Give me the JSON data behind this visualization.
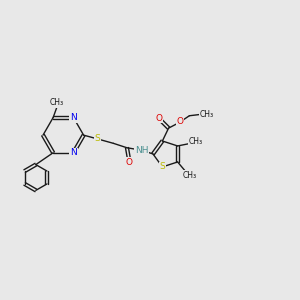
{
  "bg_color": "#e8e8e8",
  "bond_color": "#1a1a1a",
  "N_color": "#0000ee",
  "S_color": "#bbbb00",
  "O_color": "#dd0000",
  "H_color": "#4a9090",
  "figsize": [
    3.0,
    3.0
  ],
  "dpi": 100,
  "xlim": [
    0,
    12
  ],
  "ylim": [
    0,
    10
  ]
}
